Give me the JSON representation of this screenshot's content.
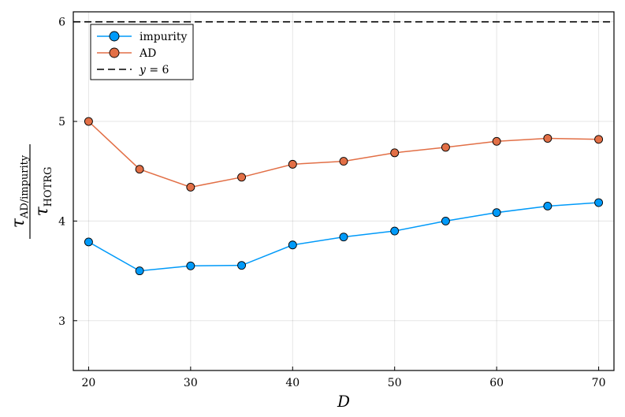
{
  "chart_data": {
    "type": "line",
    "x": [
      20,
      25,
      30,
      35,
      40,
      45,
      50,
      55,
      60,
      65,
      70
    ],
    "series": [
      {
        "name": "impurity",
        "color": "#009af9",
        "marker": "circle",
        "values": [
          3.79,
          3.5,
          3.55,
          3.555,
          3.76,
          3.84,
          3.9,
          4.0,
          4.085,
          4.15,
          4.185
        ]
      },
      {
        "name": "AD",
        "color": "#e26f46",
        "marker": "circle",
        "values": [
          5.0,
          4.52,
          4.34,
          4.44,
          4.57,
          4.6,
          4.685,
          4.74,
          4.8,
          4.83,
          4.82
        ]
      }
    ],
    "reference_line": {
      "name": "y = 6",
      "y": 6,
      "style": "dashed",
      "color": "#000000"
    },
    "xlabel": "D",
    "ylabel": {
      "numerator": "τ",
      "numerator_sub": "AD/impurity",
      "denominator": "τ",
      "denominator_sub": "HOTRG"
    },
    "xlim": [
      18.5,
      71.5
    ],
    "ylim": [
      2.5,
      6.1
    ],
    "xticks": [
      "20",
      "30",
      "40",
      "50",
      "60",
      "70"
    ],
    "yticks": [
      "3",
      "4",
      "5",
      "6"
    ],
    "grid": true,
    "legend_position": "top-left"
  }
}
